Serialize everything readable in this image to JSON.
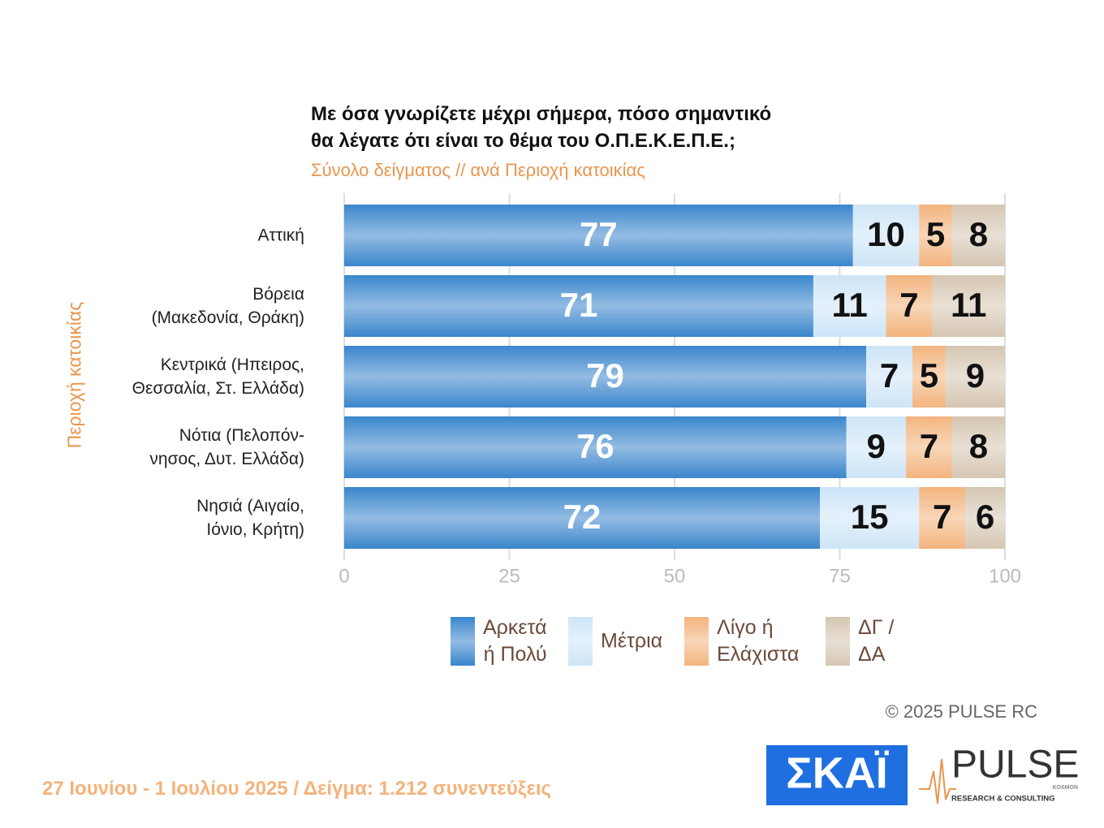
{
  "chart_data": {
    "type": "stacked-bar-horizontal",
    "title": "Με όσα γνωρίζετε μέχρι σήμερα, πόσο σημαντικό\nθα λέγατε ότι είναι το θέμα του  Ο.Π.Ε.Κ.Ε.Π.Ε.;",
    "subtitle": "Σύνολο δείγματος // ανά Περιοχή κατοικίας",
    "y_label": "Περιοχή κατοικίας",
    "categories": [
      "Αττική",
      "Βόρεια\n(Μακεδονία, Θράκη)",
      "Κεντρικά (Ηπειρος,\nΘεσσαλία, Στ. Ελλάδα)",
      "Νότια (Πελοπόν-\nνησος, Δυτ. Ελλάδα)",
      "Νησιά (Αιγαίο,\nΙόνιο, Κρήτη)"
    ],
    "series": [
      {
        "name": "Αρκετά\nή Πολύ",
        "color": "#3a86cc",
        "values": [
          77,
          71,
          79,
          76,
          72
        ]
      },
      {
        "name": "Μέτρια",
        "color": "#cde5f7",
        "values": [
          10,
          11,
          7,
          9,
          15
        ]
      },
      {
        "name": "Λίγο ή\nΕλάχιστα",
        "color": "#f3b47e",
        "values": [
          5,
          7,
          5,
          7,
          7
        ]
      },
      {
        "name": "ΔΓ /\nΔΑ",
        "color": "#d5c6b2",
        "values": [
          8,
          11,
          9,
          8,
          6
        ]
      }
    ],
    "xlim": [
      0,
      100
    ],
    "xticks": [
      0,
      25,
      50,
      75,
      100
    ],
    "grid": true
  },
  "footer": {
    "fieldwork": "27 Ιουνίου - 1 Ιουλίου 2025  /  Δείγμα:  1.212 συνεντεύξεις",
    "copyright": "©  2025  PULSE RC",
    "logo_skai": "ΣΚΑΪ",
    "logo_pulse": "PULSE",
    "logo_pulse_sub": "RESEARCH & CONSULTING",
    "logo_kosmon": "KOSMON"
  }
}
